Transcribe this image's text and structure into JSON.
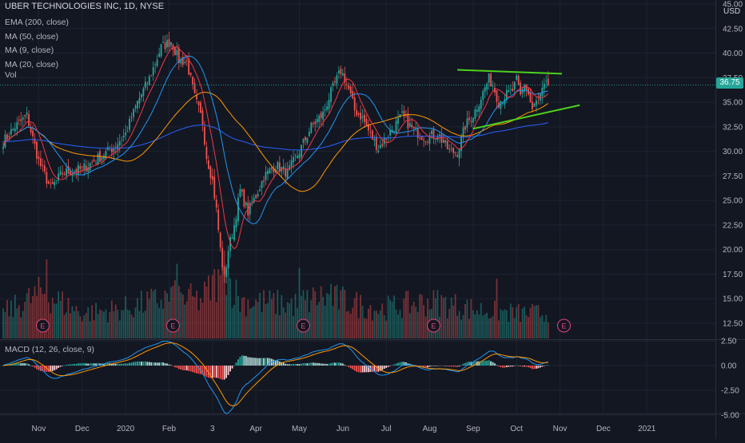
{
  "header": {
    "title": "UBER TECHNOLOGIES INC, 1D, NYSE",
    "indicators": [
      "EMA (200, close)",
      "MA (50, close)",
      "MA (9, close)",
      "MA (20, close)",
      "Vol"
    ],
    "currency": "USD",
    "last_price": "36.75",
    "macd_label": "MACD (12, 26, close, 9)",
    "earnings_marker": "E"
  },
  "colors": {
    "background": "#131722",
    "grid": "#1f2330",
    "up": "#26a69a",
    "down": "#ef5350",
    "ema200": "#2962ff",
    "ma50": "#ff9800",
    "ma9": "#f23645",
    "ma20": "#2196f3",
    "trendline": "#4cd21e",
    "macd_line": "#2196f3",
    "signal_line": "#ff9800",
    "price_tag": "#26a69a",
    "earnings": "#e0457b"
  },
  "chart_data": {
    "type": "candlestick",
    "price_axis": {
      "ticks": [
        "45.00",
        "42.50",
        "40.00",
        "37.50",
        "35.00",
        "32.50",
        "30.00",
        "27.50",
        "25.00",
        "22.50",
        "20.00",
        "17.50",
        "15.00",
        "12.50"
      ],
      "range": [
        11.0,
        45.0
      ]
    },
    "macd_axis": {
      "ticks": [
        "2.50",
        "0.00",
        "-2.50",
        "-5.00"
      ],
      "range": [
        -5.6,
        2.9
      ]
    },
    "time_axis": [
      "Nov",
      "Dec",
      "2020",
      "Feb",
      "3",
      "Apr",
      "May",
      "Jun",
      "Jul",
      "Aug",
      "Sep",
      "Oct",
      "Nov",
      "Dec",
      "2021"
    ],
    "total_days": 304,
    "time_label_days": [
      18,
      40,
      62,
      84,
      106,
      128,
      150,
      172,
      194,
      216,
      238,
      260,
      282,
      304,
      326
    ],
    "earnings_days": [
      20,
      86,
      152,
      218,
      284
    ],
    "anchors": [
      [
        0,
        31.0
      ],
      [
        6,
        32.5
      ],
      [
        12,
        33.6
      ],
      [
        18,
        29.0
      ],
      [
        24,
        26.2
      ],
      [
        30,
        27.8
      ],
      [
        40,
        28.2
      ],
      [
        48,
        29.3
      ],
      [
        56,
        30.4
      ],
      [
        62,
        31.8
      ],
      [
        68,
        35.0
      ],
      [
        74,
        37.4
      ],
      [
        80,
        40.6
      ],
      [
        85,
        41.2
      ],
      [
        89,
        39.3
      ],
      [
        93,
        39.1
      ],
      [
        97,
        35.5
      ],
      [
        101,
        33.0
      ],
      [
        103,
        29.5
      ],
      [
        106,
        27.0
      ],
      [
        108,
        24.0
      ],
      [
        110,
        20.0
      ],
      [
        112,
        17.0
      ],
      [
        114,
        20.0
      ],
      [
        117,
        22.5
      ],
      [
        120,
        26.0
      ],
      [
        124,
        23.8
      ],
      [
        128,
        25.5
      ],
      [
        132,
        27.4
      ],
      [
        138,
        28.6
      ],
      [
        144,
        27.8
      ],
      [
        150,
        30.0
      ],
      [
        156,
        32.5
      ],
      [
        162,
        33.8
      ],
      [
        166,
        36.0
      ],
      [
        171,
        38.2
      ],
      [
        173,
        37.4
      ],
      [
        175,
        36.3
      ],
      [
        178,
        34.2
      ],
      [
        182,
        33.4
      ],
      [
        186,
        31.7
      ],
      [
        190,
        30.3
      ],
      [
        196,
        32.0
      ],
      [
        202,
        33.6
      ],
      [
        208,
        32.1
      ],
      [
        214,
        31.4
      ],
      [
        220,
        31.8
      ],
      [
        226,
        30.0
      ],
      [
        230,
        29.9
      ],
      [
        234,
        32.6
      ],
      [
        238,
        33.7
      ],
      [
        242,
        35.5
      ],
      [
        246,
        37.4
      ],
      [
        248,
        36.8
      ],
      [
        251,
        35.0
      ],
      [
        254,
        35.6
      ],
      [
        258,
        36.2
      ],
      [
        260,
        37.2
      ],
      [
        262,
        35.6
      ],
      [
        264,
        36.9
      ],
      [
        266,
        35.8
      ],
      [
        268,
        34.2
      ],
      [
        270,
        35.0
      ],
      [
        272,
        35.6
      ],
      [
        274,
        36.5
      ],
      [
        276,
        36.75
      ]
    ],
    "volume_anchors": [
      [
        0,
        0.3
      ],
      [
        20,
        0.55
      ],
      [
        40,
        0.3
      ],
      [
        60,
        0.35
      ],
      [
        86,
        0.5
      ],
      [
        100,
        0.45
      ],
      [
        112,
        0.8
      ],
      [
        120,
        0.45
      ],
      [
        150,
        0.4
      ],
      [
        160,
        0.5
      ],
      [
        172,
        0.45
      ],
      [
        190,
        0.35
      ],
      [
        218,
        0.45
      ],
      [
        238,
        0.35
      ],
      [
        260,
        0.3
      ],
      [
        276,
        0.3
      ]
    ],
    "volume_spikes": [
      [
        22,
        0.9
      ],
      [
        86,
        0.6
      ],
      [
        88,
        0.85
      ],
      [
        110,
        0.72
      ],
      [
        112,
        1.0
      ],
      [
        150,
        0.8
      ],
      [
        152,
        0.55
      ],
      [
        166,
        0.62
      ],
      [
        218,
        0.55
      ],
      [
        250,
        0.68
      ]
    ],
    "trendlines": [
      {
        "start": [
          230,
          38.3
        ],
        "end": [
          283,
          37.9
        ]
      },
      {
        "start": [
          238,
          32.3
        ],
        "end": [
          292,
          34.7
        ]
      }
    ]
  }
}
